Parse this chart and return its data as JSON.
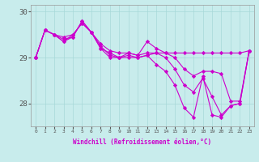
{
  "xlabel": "Windchill (Refroidissement éolien,°C)",
  "background_color": "#c8ecec",
  "line_color": "#cc00cc",
  "x": [
    0,
    1,
    2,
    3,
    4,
    5,
    6,
    7,
    8,
    9,
    10,
    11,
    12,
    13,
    14,
    15,
    16,
    17,
    18,
    19,
    20,
    21,
    22,
    23
  ],
  "series": [
    [
      29.0,
      29.6,
      29.5,
      29.45,
      29.5,
      29.75,
      29.55,
      29.3,
      29.15,
      29.1,
      29.1,
      29.05,
      29.35,
      29.2,
      29.1,
      29.0,
      28.75,
      28.6,
      28.7,
      28.7,
      28.65,
      28.05,
      28.05,
      29.15
    ],
    [
      29.0,
      29.6,
      29.5,
      29.4,
      29.45,
      29.8,
      29.55,
      29.25,
      29.05,
      29.0,
      29.05,
      29.0,
      29.05,
      29.1,
      29.0,
      28.75,
      28.4,
      28.25,
      28.55,
      28.15,
      27.75,
      27.95,
      28.0,
      29.15
    ],
    [
      29.0,
      29.6,
      29.5,
      29.35,
      29.45,
      29.8,
      29.55,
      29.2,
      29.0,
      29.0,
      29.0,
      29.0,
      29.05,
      28.85,
      28.7,
      28.4,
      27.9,
      27.7,
      28.6,
      27.75,
      27.7,
      27.95,
      28.0,
      29.15
    ],
    [
      29.0,
      29.6,
      29.5,
      29.35,
      29.5,
      29.75,
      29.55,
      29.2,
      29.1,
      29.0,
      29.1,
      29.05,
      29.1,
      29.1,
      29.1,
      29.1,
      29.1,
      29.1,
      29.1,
      29.1,
      29.1,
      29.1,
      29.1,
      29.15
    ]
  ],
  "ylim": [
    27.5,
    30.15
  ],
  "yticks": [
    28,
    29,
    30
  ],
  "xlim": [
    -0.5,
    23.5
  ],
  "grid_color": "#a8d8d8",
  "marker": "D",
  "markersize": 2.2,
  "linewidth": 0.8
}
